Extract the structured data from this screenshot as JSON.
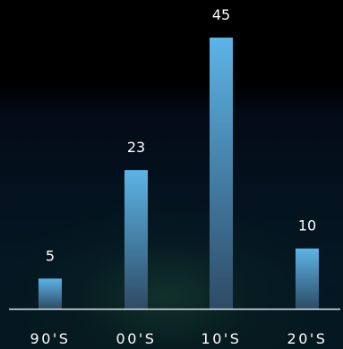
{
  "chart_data": {
    "type": "bar",
    "categories": [
      "90'S",
      "00'S",
      "10'S",
      "20'S"
    ],
    "values": [
      5,
      23,
      45,
      10
    ],
    "data_labels": [
      "5",
      "23",
      "45",
      "10"
    ],
    "title": "",
    "xlabel": "",
    "ylabel": "",
    "ylim": [
      0,
      45
    ],
    "grid": false,
    "legend": "none",
    "colors": {
      "bar_top": "#5cb4e6",
      "bar_bottom": "#2e4b66",
      "axis": "#dfe6ea",
      "text": "#ffffff"
    }
  }
}
